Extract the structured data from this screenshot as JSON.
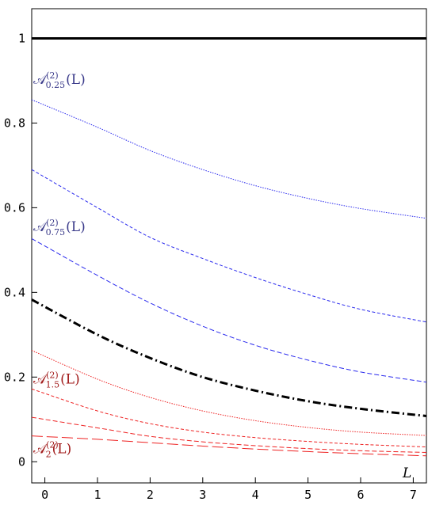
{
  "chart_data": {
    "type": "line",
    "xlabel": "L",
    "ylabel": "",
    "xlim": [
      -0.25,
      7.25
    ],
    "ylim": [
      -0.05,
      1.07
    ],
    "x_ticks": [
      "0",
      "1",
      "2",
      "3",
      "4",
      "5",
      "6",
      "7"
    ],
    "y_ticks": [
      "0",
      "0.2",
      "0.4",
      "0.6",
      "0.8",
      "1"
    ],
    "grid": false,
    "series": [
      {
        "color": "#000000",
        "dash": "solid-thick",
        "values": [
          [
            -0.25,
            1.0
          ],
          [
            7.25,
            1.0
          ]
        ]
      },
      {
        "color": "#2a2aee",
        "dash": "dotted",
        "values": [
          [
            -0.25,
            0.855
          ],
          [
            1,
            0.79
          ],
          [
            2,
            0.735
          ],
          [
            3,
            0.69
          ],
          [
            4,
            0.652
          ],
          [
            5,
            0.622
          ],
          [
            6,
            0.598
          ],
          [
            7.25,
            0.575
          ]
        ]
      },
      {
        "color": "#2a2aee",
        "dash": "short-dash",
        "values": [
          [
            -0.25,
            0.69
          ],
          [
            1,
            0.6
          ],
          [
            2,
            0.53
          ],
          [
            3,
            0.48
          ],
          [
            4,
            0.435
          ],
          [
            5,
            0.395
          ],
          [
            6,
            0.36
          ],
          [
            7.25,
            0.33
          ]
        ]
      },
      {
        "color": "#2a2aee",
        "dash": "dash",
        "values": [
          [
            -0.25,
            0.527
          ],
          [
            1,
            0.44
          ],
          [
            2,
            0.375
          ],
          [
            3,
            0.32
          ],
          [
            4,
            0.275
          ],
          [
            5,
            0.24
          ],
          [
            6,
            0.212
          ],
          [
            7.25,
            0.188
          ]
        ]
      },
      {
        "color": "#000000",
        "dash": "dash-dot-thick",
        "values": [
          [
            -0.25,
            0.383
          ],
          [
            1,
            0.3
          ],
          [
            2,
            0.245
          ],
          [
            3,
            0.2
          ],
          [
            4,
            0.168
          ],
          [
            5,
            0.143
          ],
          [
            6,
            0.125
          ],
          [
            7.25,
            0.108
          ]
        ]
      },
      {
        "color": "#ee2222",
        "dash": "dotted",
        "values": [
          [
            -0.25,
            0.263
          ],
          [
            1,
            0.195
          ],
          [
            2,
            0.152
          ],
          [
            3,
            0.12
          ],
          [
            4,
            0.097
          ],
          [
            5,
            0.081
          ],
          [
            6,
            0.07
          ],
          [
            7.25,
            0.062
          ]
        ]
      },
      {
        "color": "#ee2222",
        "dash": "short-dash",
        "values": [
          [
            -0.25,
            0.172
          ],
          [
            1,
            0.12
          ],
          [
            2,
            0.09
          ],
          [
            3,
            0.07
          ],
          [
            4,
            0.057
          ],
          [
            5,
            0.048
          ],
          [
            6,
            0.041
          ],
          [
            7.25,
            0.035
          ]
        ]
      },
      {
        "color": "#ee2222",
        "dash": "dash",
        "values": [
          [
            -0.25,
            0.105
          ],
          [
            1,
            0.08
          ],
          [
            2,
            0.06
          ],
          [
            3,
            0.047
          ],
          [
            4,
            0.038
          ],
          [
            5,
            0.031
          ],
          [
            6,
            0.026
          ],
          [
            7.25,
            0.022
          ]
        ]
      },
      {
        "color": "#ee2222",
        "dash": "long-dash",
        "values": [
          [
            -0.25,
            0.061
          ],
          [
            1,
            0.053
          ],
          [
            2,
            0.045
          ],
          [
            3,
            0.037
          ],
          [
            4,
            0.03
          ],
          [
            5,
            0.024
          ],
          [
            6,
            0.019
          ],
          [
            7.25,
            0.014
          ]
        ]
      }
    ],
    "annotations": [
      {
        "main": "𝒜",
        "sup": "(2)",
        "sub": "0.25",
        "arg": "(L)",
        "color": "#3a3a8a",
        "at": [
          -0.22,
          0.892
        ]
      },
      {
        "main": "𝒜",
        "sup": "(2)",
        "sub": "0.75",
        "arg": "(L)",
        "color": "#3a3a8a",
        "at": [
          -0.22,
          0.545
        ]
      },
      {
        "main": "𝒜",
        "sup": "(2)",
        "sub": "1.5",
        "arg": "(L)",
        "color": "#a01818",
        "at": [
          -0.22,
          0.185
        ]
      },
      {
        "main": "𝒜",
        "sup": "(2)",
        "sub": "2",
        "arg": "(L)",
        "color": "#a01818",
        "at": [
          -0.22,
          0.02
        ]
      }
    ]
  }
}
